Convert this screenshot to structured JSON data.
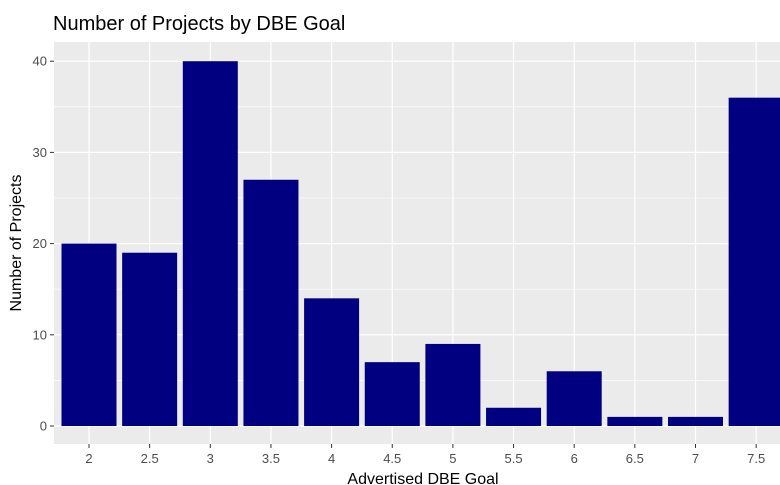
{
  "chart_data": {
    "type": "bar",
    "title": "Number of Projects by DBE Goal",
    "xlabel": "Advertised DBE Goal",
    "ylabel": "Number of Projects",
    "categories": [
      "2",
      "2.5",
      "3",
      "3.5",
      "4",
      "4.5",
      "5",
      "5.5",
      "6",
      "6.5",
      "7",
      "7.5"
    ],
    "values": [
      20,
      19,
      40,
      27,
      14,
      7,
      9,
      2,
      6,
      1,
      1,
      36
    ],
    "y_ticks": [
      0,
      10,
      20,
      30,
      40
    ],
    "ylim": [
      -1,
      42
    ],
    "bar_color": "#000080",
    "panel_background": "#ebebeb",
    "grid": true
  }
}
